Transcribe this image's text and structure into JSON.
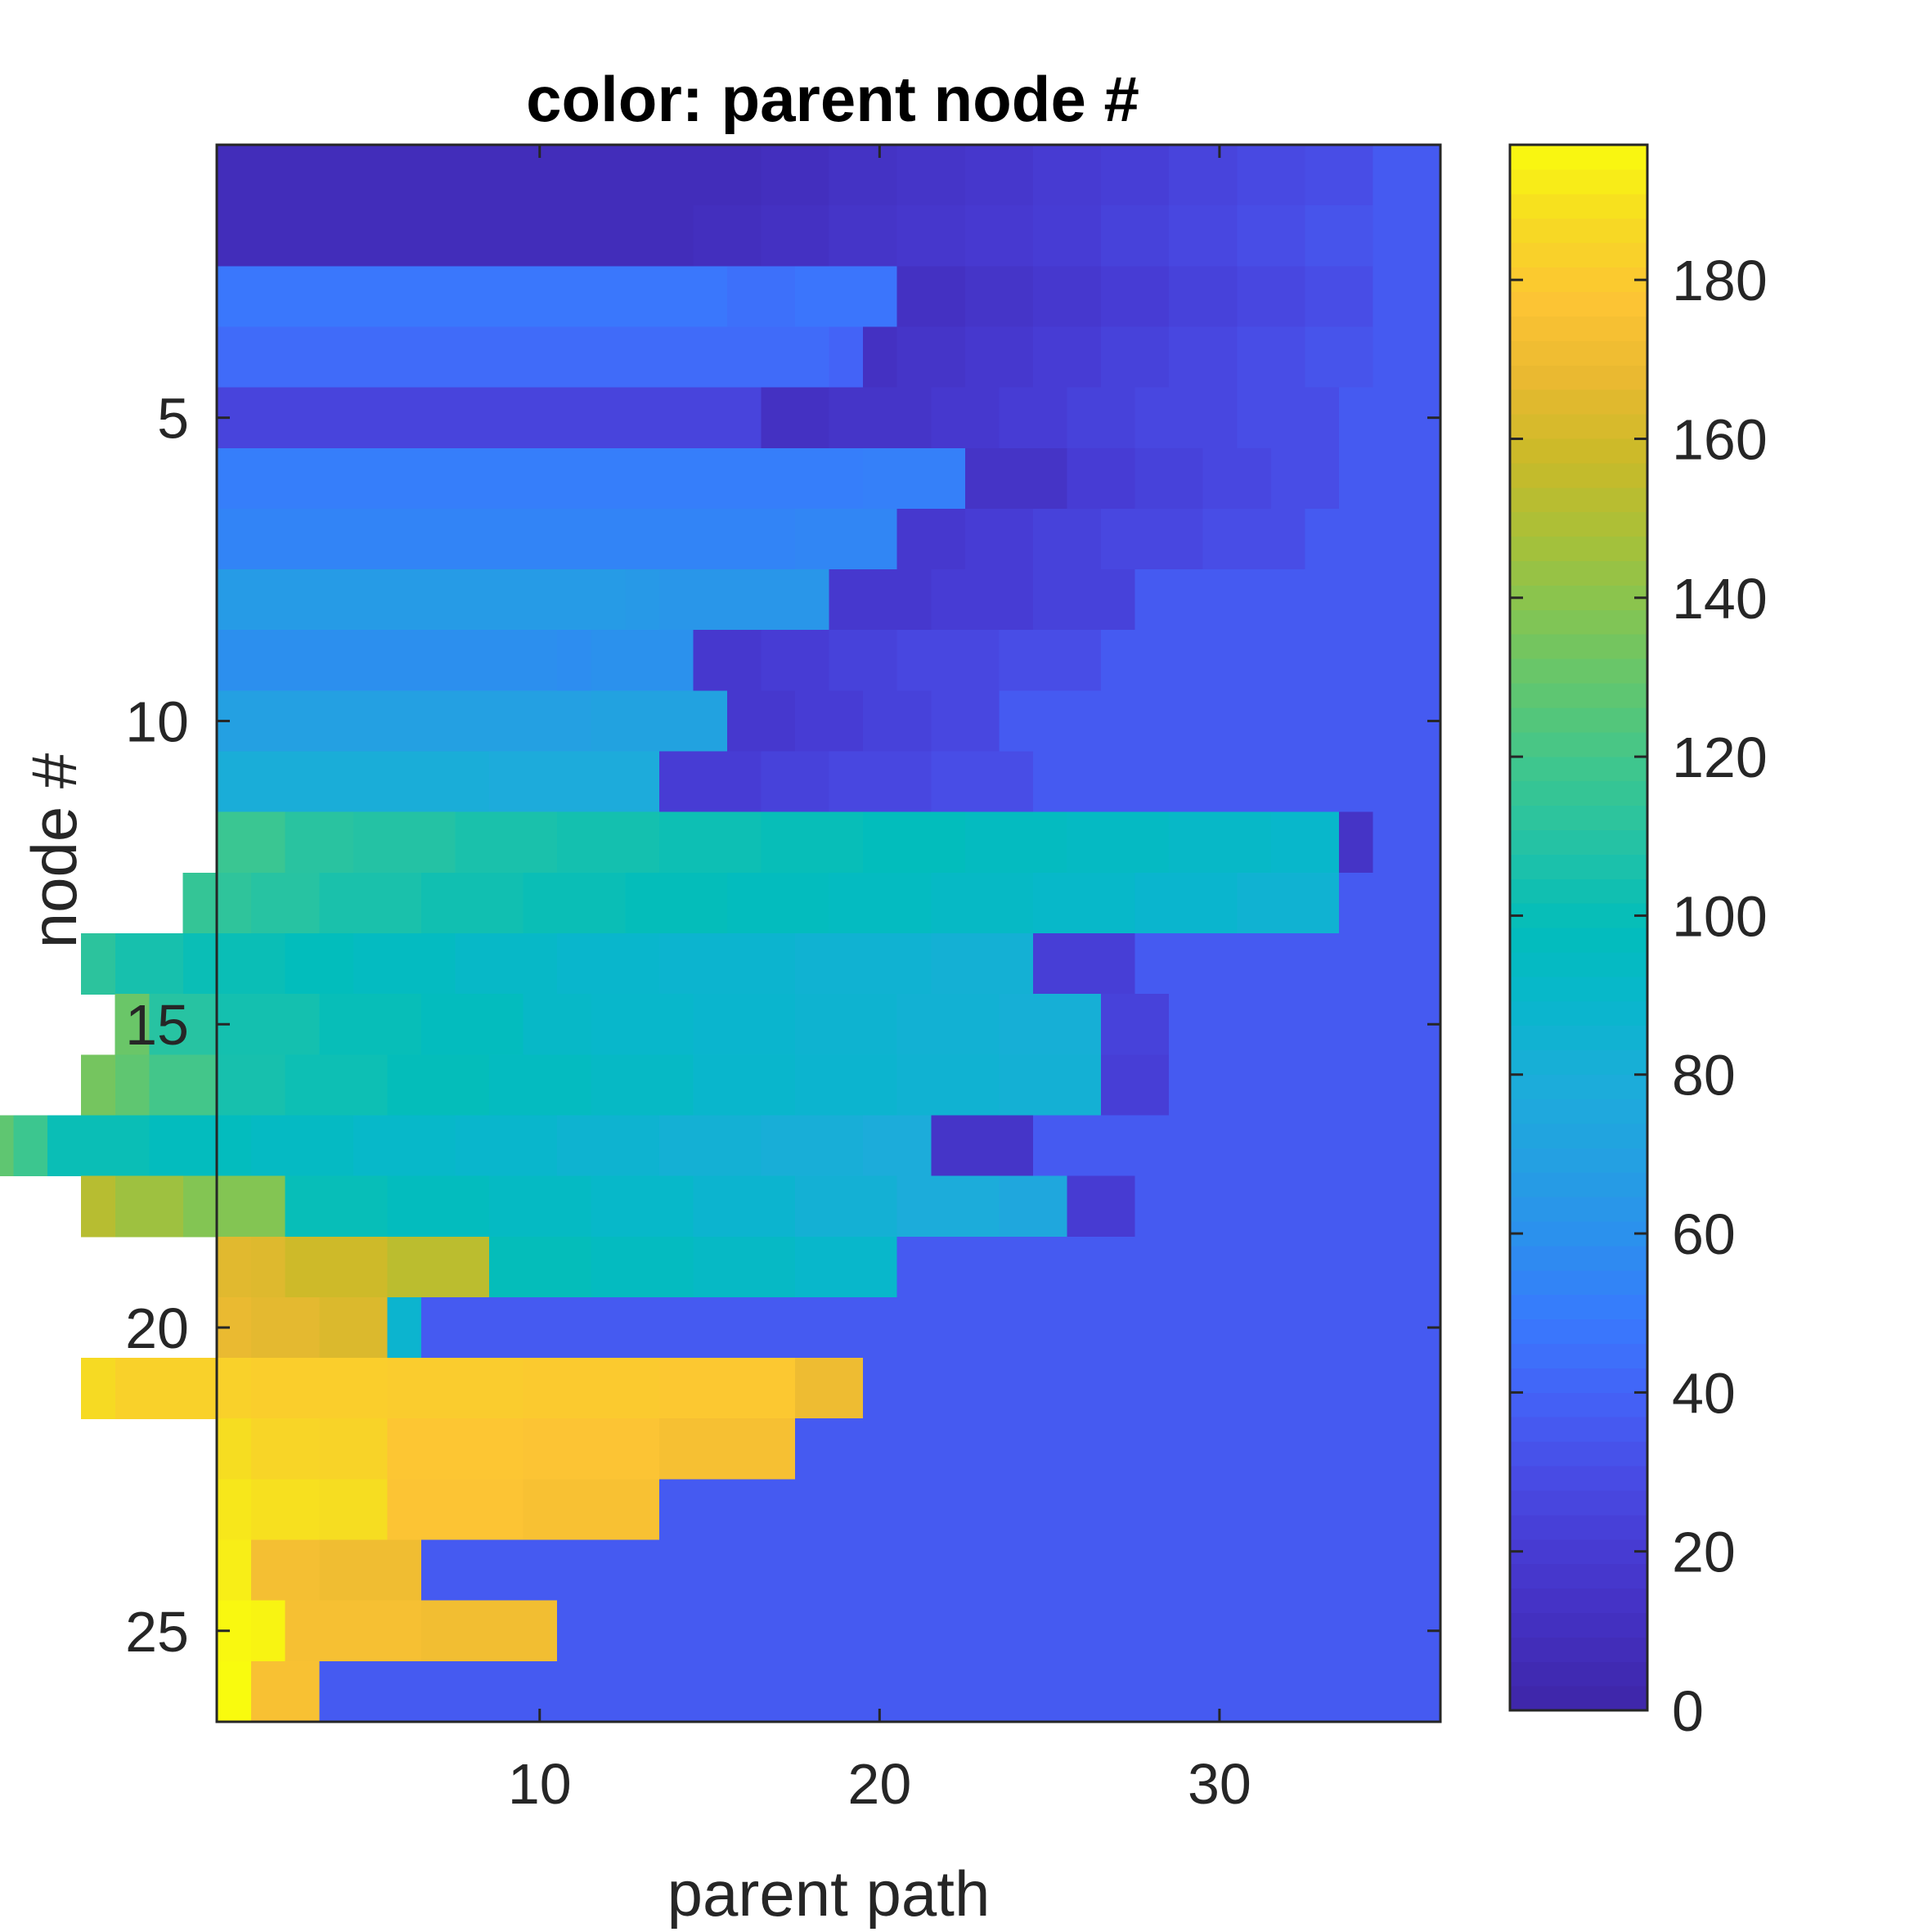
{
  "chart_data": {
    "type": "heatmap",
    "title": "color: parent node #",
    "xlabel": "parent path",
    "ylabel": "node #",
    "x_ticks": [
      10,
      20,
      30
    ],
    "y_ticks": [
      5,
      10,
      15,
      20,
      25
    ],
    "xlim": [
      0.5,
      36.5
    ],
    "ylim": [
      0.5,
      26.5
    ],
    "colorbar": {
      "colormap": "parula",
      "clim": [
        0,
        197
      ],
      "ticks": [
        0,
        20,
        40,
        60,
        80,
        100,
        120,
        140,
        160,
        180
      ]
    },
    "rows": [
      {
        "node": 1,
        "runs": [
          [
            2,
            36
          ],
          [
            2,
            30
          ],
          [
            2,
            28
          ],
          [
            2,
            25
          ],
          [
            2,
            22
          ],
          [
            2,
            20
          ],
          [
            2,
            17
          ],
          [
            2,
            15
          ],
          [
            2,
            13
          ],
          [
            2,
            10
          ],
          [
            2,
            8
          ]
        ]
      },
      {
        "node": 2,
        "runs": [
          [
            2,
            36
          ],
          [
            2,
            33
          ],
          [
            2,
            30
          ],
          [
            2,
            27
          ],
          [
            2,
            24
          ],
          [
            2,
            21
          ],
          [
            2,
            19
          ],
          [
            2,
            17
          ],
          [
            2,
            15
          ],
          [
            2,
            12
          ],
          [
            2,
            10
          ],
          [
            2,
            8
          ]
        ]
      },
      {
        "node": 3,
        "runs": [
          [
            2,
            36
          ],
          [
            2,
            30
          ],
          [
            2,
            27
          ],
          [
            2,
            24
          ],
          [
            2,
            21
          ],
          [
            2,
            18
          ],
          [
            2,
            15
          ],
          [
            2,
            12
          ],
          [
            3,
            47
          ],
          [
            2,
            45
          ],
          [
            1,
            48
          ]
        ]
      },
      {
        "node": 4,
        "runs": [
          [
            2,
            36
          ],
          [
            2,
            33
          ],
          [
            2,
            30
          ],
          [
            2,
            27
          ],
          [
            2,
            24
          ],
          [
            2,
            21
          ],
          [
            2,
            18
          ],
          [
            2,
            15
          ],
          [
            1,
            12
          ],
          [
            1,
            40
          ],
          [
            1,
            43
          ]
        ]
      },
      {
        "node": 5,
        "runs": [
          [
            3,
            36
          ],
          [
            3,
            30
          ],
          [
            3,
            27
          ],
          [
            2,
            24
          ],
          [
            2,
            21
          ],
          [
            2,
            18
          ],
          [
            3,
            15
          ],
          [
            2,
            12
          ],
          [
            1,
            25
          ]
        ]
      },
      {
        "node": 6,
        "runs": [
          [
            3,
            36
          ],
          [
            2,
            30
          ],
          [
            2,
            27
          ],
          [
            2,
            24
          ],
          [
            2,
            21
          ],
          [
            3,
            14
          ],
          [
            3,
            52
          ],
          [
            1,
            51
          ]
        ]
      },
      {
        "node": 7,
        "runs": [
          [
            4,
            36
          ],
          [
            3,
            30
          ],
          [
            3,
            27
          ],
          [
            2,
            24
          ],
          [
            2,
            21
          ],
          [
            2,
            18
          ],
          [
            3,
            55
          ],
          [
            1,
            54
          ]
        ]
      },
      {
        "node": 8,
        "runs": [
          [
            9,
            36
          ],
          [
            3,
            24
          ],
          [
            3,
            21
          ],
          [
            3,
            18
          ],
          [
            5,
            63
          ],
          [
            1,
            65
          ],
          [
            1,
            66
          ]
        ]
      },
      {
        "node": 9,
        "runs": [
          [
            10,
            36
          ],
          [
            3,
            30
          ],
          [
            3,
            27
          ],
          [
            2,
            24
          ],
          [
            2,
            21
          ],
          [
            2,
            18
          ],
          [
            3,
            60
          ],
          [
            1,
            58
          ],
          [
            1,
            59
          ]
        ]
      },
      {
        "node": 10,
        "runs": [
          [
            13,
            36
          ],
          [
            2,
            27
          ],
          [
            2,
            24
          ],
          [
            2,
            21
          ],
          [
            2,
            18
          ],
          [
            4,
            71
          ],
          [
            1,
            69
          ]
        ]
      },
      {
        "node": 11,
        "runs": [
          [
            12,
            36
          ],
          [
            3,
            30
          ],
          [
            3,
            27
          ],
          [
            2,
            24
          ],
          [
            3,
            21
          ],
          [
            5,
            78
          ],
          [
            1,
            80
          ]
        ]
      },
      {
        "node": 12,
        "runs": [
          [
            2,
            36
          ],
          [
            1,
            14
          ],
          [
            2,
            90
          ],
          [
            3,
            92
          ],
          [
            3,
            94
          ],
          [
            3,
            96
          ],
          [
            3,
            98
          ],
          [
            3,
            100
          ],
          [
            3,
            102
          ],
          [
            3,
            104
          ],
          [
            3,
            106
          ],
          [
            3,
            109
          ],
          [
            2,
            111
          ],
          [
            1,
            117
          ]
        ]
      },
      {
        "node": 13,
        "runs": [
          [
            3,
            36
          ],
          [
            3,
            85
          ],
          [
            3,
            88
          ],
          [
            3,
            91
          ],
          [
            3,
            93
          ],
          [
            3,
            95
          ],
          [
            3,
            97
          ],
          [
            3,
            99
          ],
          [
            3,
            101
          ],
          [
            3,
            103
          ],
          [
            3,
            106
          ],
          [
            2,
            110
          ],
          [
            1,
            113
          ],
          [
            1,
            115
          ]
        ]
      },
      {
        "node": 14,
        "runs": [
          [
            9,
            36
          ],
          [
            3,
            22
          ],
          [
            3,
            83
          ],
          [
            4,
            85
          ],
          [
            4,
            87
          ],
          [
            3,
            89
          ],
          [
            3,
            92
          ],
          [
            3,
            95
          ],
          [
            2,
            98
          ],
          [
            3,
            101
          ],
          [
            2,
            105
          ],
          [
            1,
            112
          ]
        ]
      },
      {
        "node": 15,
        "runs": [
          [
            8,
            36
          ],
          [
            2,
            24
          ],
          [
            3,
            82
          ],
          [
            3,
            84
          ],
          [
            3,
            86
          ],
          [
            3,
            88
          ],
          [
            3,
            90
          ],
          [
            2,
            92
          ],
          [
            3,
            97
          ],
          [
            3,
            100
          ],
          [
            3,
            104
          ],
          [
            2,
            110
          ],
          [
            1,
            131
          ]
        ]
      },
      {
        "node": 16,
        "runs": [
          [
            8,
            36
          ],
          [
            2,
            22
          ],
          [
            3,
            83
          ],
          [
            3,
            85
          ],
          [
            3,
            87
          ],
          [
            3,
            89
          ],
          [
            3,
            93
          ],
          [
            3,
            96
          ],
          [
            3,
            99
          ],
          [
            3,
            102
          ],
          [
            2,
            105
          ],
          [
            2,
            120
          ],
          [
            1,
            128
          ],
          [
            1,
            134
          ]
        ]
      },
      {
        "node": 17,
        "runs": [
          [
            12,
            36
          ],
          [
            3,
            15
          ],
          [
            2,
            79
          ],
          [
            3,
            81
          ],
          [
            3,
            83
          ],
          [
            3,
            86
          ],
          [
            3,
            89
          ],
          [
            3,
            91
          ],
          [
            3,
            94
          ],
          [
            3,
            97
          ],
          [
            3,
            101
          ],
          [
            1,
            118
          ],
          [
            1,
            128
          ],
          [
            1,
            137
          ],
          [
            1,
            140
          ]
        ]
      },
      {
        "node": 18,
        "runs": [
          [
            9,
            36
          ],
          [
            2,
            20
          ],
          [
            2,
            75
          ],
          [
            3,
            79
          ],
          [
            3,
            83
          ],
          [
            3,
            87
          ],
          [
            3,
            91
          ],
          [
            3,
            94
          ],
          [
            3,
            97
          ],
          [
            3,
            100
          ],
          [
            3,
            138
          ],
          [
            2,
            145
          ],
          [
            1,
            152
          ]
        ]
      },
      {
        "node": 19,
        "runs": [
          [
            16,
            36
          ],
          [
            3,
            90
          ],
          [
            3,
            93
          ],
          [
            3,
            96
          ],
          [
            3,
            99
          ],
          [
            3,
            153
          ],
          [
            3,
            159
          ],
          [
            1,
            164
          ],
          [
            1,
            165
          ]
        ]
      },
      {
        "node": 20,
        "runs": [
          [
            30,
            36
          ],
          [
            1,
            87
          ],
          [
            2,
            163
          ],
          [
            2,
            166
          ],
          [
            1,
            168
          ]
        ]
      },
      {
        "node": 21,
        "runs": [
          [
            17,
            36
          ],
          [
            2,
            170
          ],
          [
            4,
            179
          ],
          [
            4,
            180
          ],
          [
            4,
            181
          ],
          [
            4,
            182
          ],
          [
            4,
            183
          ],
          [
            1,
            187
          ]
        ]
      },
      {
        "node": 22,
        "runs": [
          [
            19,
            36
          ],
          [
            4,
            174
          ],
          [
            4,
            177
          ],
          [
            4,
            178
          ],
          [
            2,
            184
          ],
          [
            2,
            185
          ],
          [
            1,
            188
          ]
        ]
      },
      {
        "node": 23,
        "runs": [
          [
            23,
            36
          ],
          [
            4,
            175
          ],
          [
            4,
            177
          ],
          [
            2,
            188
          ],
          [
            2,
            189
          ],
          [
            1,
            191
          ]
        ]
      },
      {
        "node": 24,
        "runs": [
          [
            30,
            36
          ],
          [
            3,
            171
          ],
          [
            2,
            173
          ],
          [
            1,
            193
          ]
        ]
      },
      {
        "node": 25,
        "runs": [
          [
            26,
            36
          ],
          [
            4,
            172
          ],
          [
            4,
            174
          ],
          [
            1,
            195
          ],
          [
            1,
            196
          ]
        ]
      },
      {
        "node": 26,
        "runs": [
          [
            33,
            36
          ],
          [
            2,
            175
          ],
          [
            1,
            197
          ]
        ]
      }
    ]
  }
}
